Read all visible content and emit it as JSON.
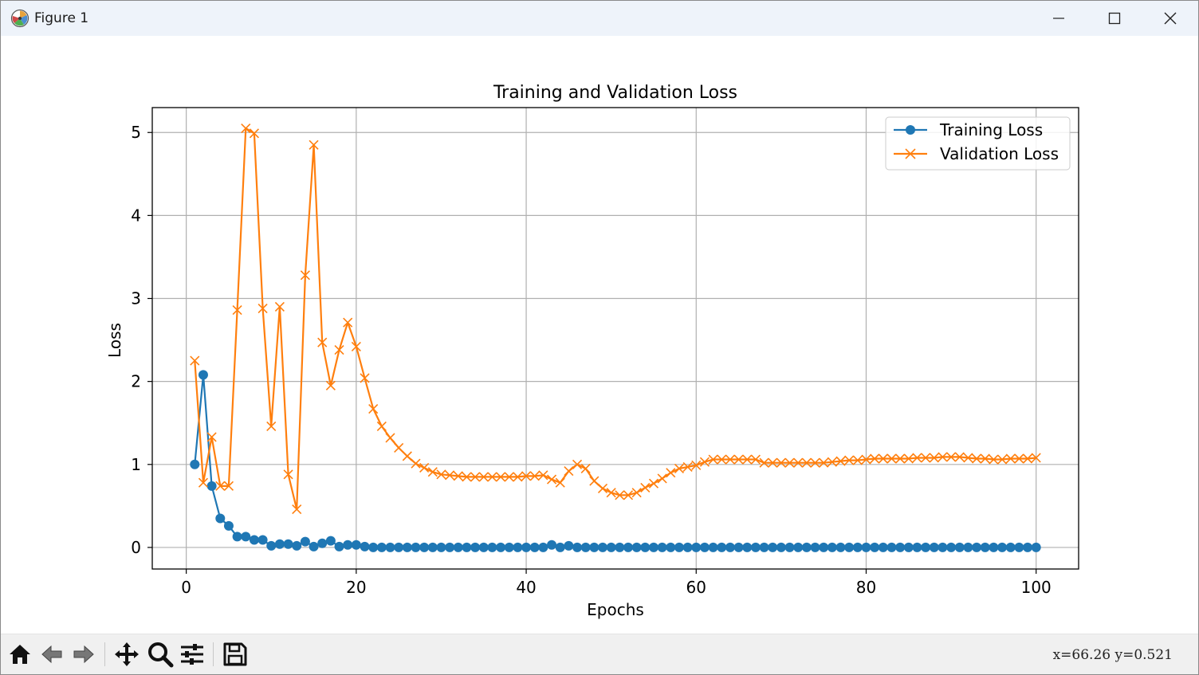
{
  "window": {
    "title": "Figure 1",
    "icon": "matplotlib-logo",
    "controls": [
      "minimize-icon",
      "maximize-icon",
      "close-icon"
    ]
  },
  "toolbar": {
    "buttons": [
      {
        "name": "home",
        "icon": "home-icon"
      },
      {
        "name": "back",
        "icon": "arrow-left-icon"
      },
      {
        "name": "forward",
        "icon": "arrow-right-icon"
      },
      {
        "name": "pan",
        "icon": "move-icon"
      },
      {
        "name": "zoom",
        "icon": "magnifier-icon"
      },
      {
        "name": "configure-subplots",
        "icon": "sliders-icon"
      },
      {
        "name": "save",
        "icon": "floppy-disk-icon"
      }
    ],
    "coords_text": "x=66.26  y=0.521"
  },
  "chart_data": {
    "type": "line",
    "title": "Training and Validation Loss",
    "xlabel": "Epochs",
    "ylabel": "Loss",
    "xlim": [
      -4,
      105
    ],
    "ylim": [
      -0.26,
      5.3
    ],
    "xticks": [
      0,
      20,
      40,
      60,
      80,
      100
    ],
    "yticks": [
      0,
      1,
      2,
      3,
      4,
      5
    ],
    "grid": true,
    "legend": "top-right",
    "x": [
      1,
      2,
      3,
      4,
      5,
      6,
      7,
      8,
      9,
      10,
      11,
      12,
      13,
      14,
      15,
      16,
      17,
      18,
      19,
      20,
      21,
      22,
      23,
      24,
      25,
      26,
      27,
      28,
      29,
      30,
      31,
      32,
      33,
      34,
      35,
      36,
      37,
      38,
      39,
      40,
      41,
      42,
      43,
      44,
      45,
      46,
      47,
      48,
      49,
      50,
      51,
      52,
      53,
      54,
      55,
      56,
      57,
      58,
      59,
      60,
      61,
      62,
      63,
      64,
      65,
      66,
      67,
      68,
      69,
      70,
      71,
      72,
      73,
      74,
      75,
      76,
      77,
      78,
      79,
      80,
      81,
      82,
      83,
      84,
      85,
      86,
      87,
      88,
      89,
      90,
      91,
      92,
      93,
      94,
      95,
      96,
      97,
      98,
      99,
      100
    ],
    "series": [
      {
        "name": "Training Loss",
        "color": "#1f77b4",
        "marker": "circle",
        "values": [
          1.0,
          2.08,
          0.74,
          0.35,
          0.26,
          0.13,
          0.13,
          0.09,
          0.09,
          0.02,
          0.04,
          0.04,
          0.02,
          0.07,
          0.01,
          0.05,
          0.08,
          0.01,
          0.03,
          0.03,
          0.01,
          0.0,
          0.0,
          0.0,
          0.0,
          0.0,
          0.0,
          0.0,
          0.0,
          0.0,
          0.0,
          0.0,
          0.0,
          0.0,
          0.0,
          0.0,
          0.0,
          0.0,
          0.0,
          0.0,
          0.0,
          0.0,
          0.03,
          0.0,
          0.02,
          0.0,
          0.0,
          0.0,
          0.0,
          0.0,
          0.0,
          0.0,
          0.0,
          0.0,
          0.0,
          0.0,
          0.0,
          0.0,
          0.0,
          0.0,
          0.0,
          0.0,
          0.0,
          0.0,
          0.0,
          0.0,
          0.0,
          0.0,
          0.0,
          0.0,
          0.0,
          0.0,
          0.0,
          0.0,
          0.0,
          0.0,
          0.0,
          0.0,
          0.0,
          0.0,
          0.0,
          0.0,
          0.0,
          0.0,
          0.0,
          0.0,
          0.0,
          0.0,
          0.0,
          0.0,
          0.0,
          0.0,
          0.0,
          0.0,
          0.0,
          0.0,
          0.0,
          0.0,
          0.0,
          0.0
        ]
      },
      {
        "name": "Validation Loss",
        "color": "#ff7f0e",
        "marker": "x",
        "values": [
          2.25,
          0.78,
          1.33,
          0.74,
          0.74,
          2.86,
          5.05,
          4.99,
          2.88,
          1.46,
          2.9,
          0.88,
          0.46,
          3.28,
          4.85,
          2.47,
          1.95,
          2.38,
          2.71,
          2.42,
          2.04,
          1.67,
          1.46,
          1.32,
          1.2,
          1.1,
          1.01,
          0.96,
          0.91,
          0.88,
          0.87,
          0.86,
          0.85,
          0.85,
          0.85,
          0.85,
          0.85,
          0.85,
          0.85,
          0.86,
          0.86,
          0.87,
          0.82,
          0.78,
          0.92,
          1.0,
          0.95,
          0.8,
          0.71,
          0.66,
          0.63,
          0.63,
          0.66,
          0.72,
          0.77,
          0.83,
          0.9,
          0.95,
          0.97,
          0.99,
          1.03,
          1.06,
          1.06,
          1.06,
          1.06,
          1.06,
          1.06,
          1.02,
          1.02,
          1.02,
          1.02,
          1.02,
          1.02,
          1.02,
          1.02,
          1.03,
          1.04,
          1.05,
          1.05,
          1.06,
          1.07,
          1.07,
          1.07,
          1.07,
          1.07,
          1.08,
          1.08,
          1.08,
          1.09,
          1.09,
          1.09,
          1.08,
          1.07,
          1.07,
          1.06,
          1.06,
          1.07,
          1.07,
          1.07,
          1.08
        ]
      }
    ]
  }
}
